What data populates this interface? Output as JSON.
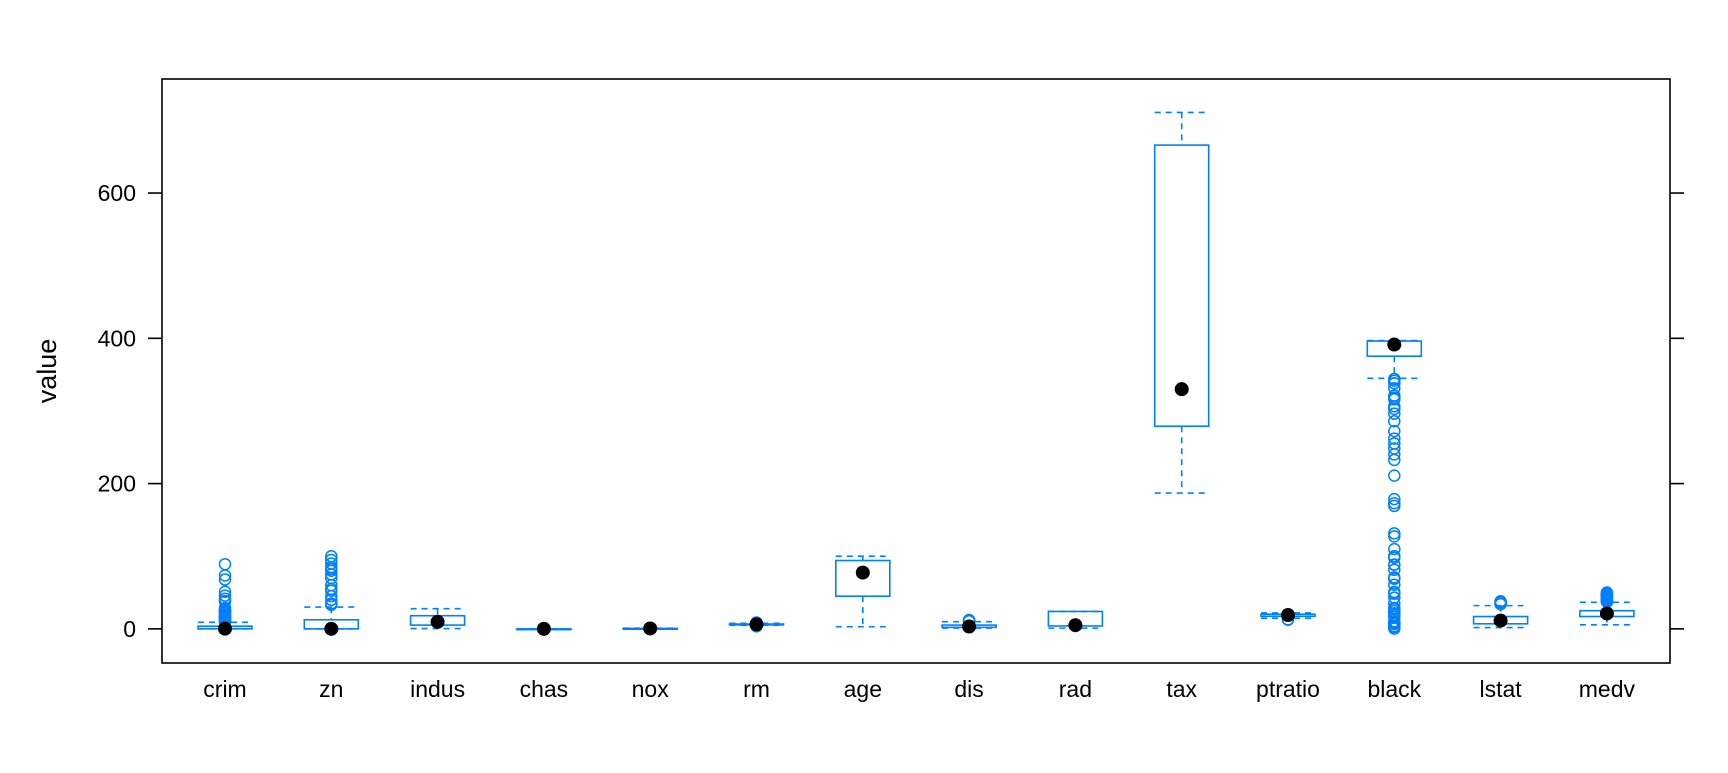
{
  "chart_data": {
    "type": "box",
    "title": "",
    "xlabel": "",
    "ylabel": "value",
    "ylim": [
      -47,
      757
    ],
    "yticks": [
      0,
      200,
      400,
      600
    ],
    "grid": false,
    "legend": "none",
    "colors": {
      "box": "#0080FF",
      "median_dot": "#000000",
      "frame": "#000000"
    },
    "categories": [
      "crim",
      "zn",
      "indus",
      "chas",
      "nox",
      "rm",
      "age",
      "dis",
      "rad",
      "tax",
      "ptratio",
      "black",
      "lstat",
      "medv"
    ],
    "boxes": [
      {
        "name": "crim",
        "min": 0.006,
        "q1": 0.08,
        "median": 0.26,
        "q3": 3.68,
        "max": 8.98,
        "outliers": [
          9.2,
          10.1,
          11.1,
          12.0,
          13.5,
          14.3,
          15.0,
          15.9,
          16.8,
          18.5,
          19.6,
          20.1,
          22.1,
          23.6,
          24.4,
          25.0,
          25.9,
          28.6,
          37.7,
          38.4,
          41.5,
          45.7,
          51.1,
          67.9,
          73.5,
          88.98
        ]
      },
      {
        "name": "zn",
        "min": 0,
        "q1": 0,
        "median": 0,
        "q3": 12.5,
        "max": 30,
        "outliers": [
          33,
          34,
          35,
          40,
          45,
          52.5,
          55,
          60,
          70,
          75,
          80,
          82.5,
          85,
          90,
          95,
          100
        ]
      },
      {
        "name": "indus",
        "min": 0.46,
        "q1": 5.19,
        "median": 9.69,
        "q3": 18.1,
        "max": 27.74,
        "outliers": []
      },
      {
        "name": "chas",
        "min": 0,
        "q1": 0,
        "median": 0,
        "q3": 0,
        "max": 0,
        "outliers": [
          1
        ]
      },
      {
        "name": "nox",
        "min": 0.385,
        "q1": 0.449,
        "median": 0.538,
        "q3": 0.624,
        "max": 0.871,
        "outliers": []
      },
      {
        "name": "rm",
        "min": 4.88,
        "q1": 5.89,
        "median": 6.21,
        "q3": 6.62,
        "max": 7.69,
        "outliers": [
          3.56,
          3.86,
          4.14,
          4.37,
          7.8,
          8.0,
          8.25,
          8.4,
          8.78
        ]
      },
      {
        "name": "age",
        "min": 2.9,
        "q1": 45.0,
        "median": 77.5,
        "q3": 94.1,
        "max": 100,
        "outliers": []
      },
      {
        "name": "dis",
        "min": 1.13,
        "q1": 2.1,
        "median": 3.21,
        "q3": 5.19,
        "max": 9.82,
        "outliers": [
          10.6,
          10.7,
          11.0,
          12.1,
          12.13
        ]
      },
      {
        "name": "rad",
        "min": 1,
        "q1": 4,
        "median": 5,
        "q3": 24,
        "max": 24,
        "outliers": []
      },
      {
        "name": "tax",
        "min": 187,
        "q1": 279,
        "median": 330,
        "q3": 666,
        "max": 711,
        "outliers": []
      },
      {
        "name": "ptratio",
        "min": 14.7,
        "q1": 17.4,
        "median": 19.05,
        "q3": 20.2,
        "max": 22.0,
        "outliers": [
          12.6,
          13.0
        ]
      },
      {
        "name": "black",
        "min": 344.9,
        "q1": 375.4,
        "median": 391.4,
        "q3": 396.2,
        "max": 396.9,
        "outliers": [
          0.32,
          2.6,
          3.5,
          3.65,
          6.68,
          7.68,
          9.32,
          10.48,
          16.45,
          18.82,
          21.57,
          24.65,
          27.25,
          28.79,
          35.05,
          43.06,
          48.45,
          50.92,
          60.72,
          68.95,
          70.8,
          81.33,
          88.27,
          88.63,
          97.95,
          100.19,
          109.85,
          127.36,
          131.42,
          169.27,
          172.91,
          178.6,
          210.97,
          232.6,
          240.16,
          248.31,
          255.23,
          261.95,
          272.21,
          285.83,
          296.29,
          302.76,
          306.38,
          316.03,
          318.43,
          321.02,
          331.29,
          338.16,
          341.6,
          344.05
        ]
      },
      {
        "name": "lstat",
        "min": 1.73,
        "q1": 6.95,
        "median": 11.36,
        "q3": 16.96,
        "max": 31.99,
        "outliers": [
          34.02,
          34.37,
          34.41,
          34.77,
          36.98,
          37.97
        ]
      },
      {
        "name": "medv",
        "min": 5.6,
        "q1": 17.0,
        "median": 21.2,
        "q3": 25.0,
        "max": 36.5,
        "outliers": [
          37.2,
          37.6,
          37.9,
          38.7,
          39.8,
          41.3,
          41.7,
          42.3,
          42.8,
          43.1,
          43.5,
          44.0,
          44.8,
          45.4,
          46.0,
          46.7,
          48.3,
          48.5,
          48.8,
          50.0
        ]
      }
    ]
  }
}
